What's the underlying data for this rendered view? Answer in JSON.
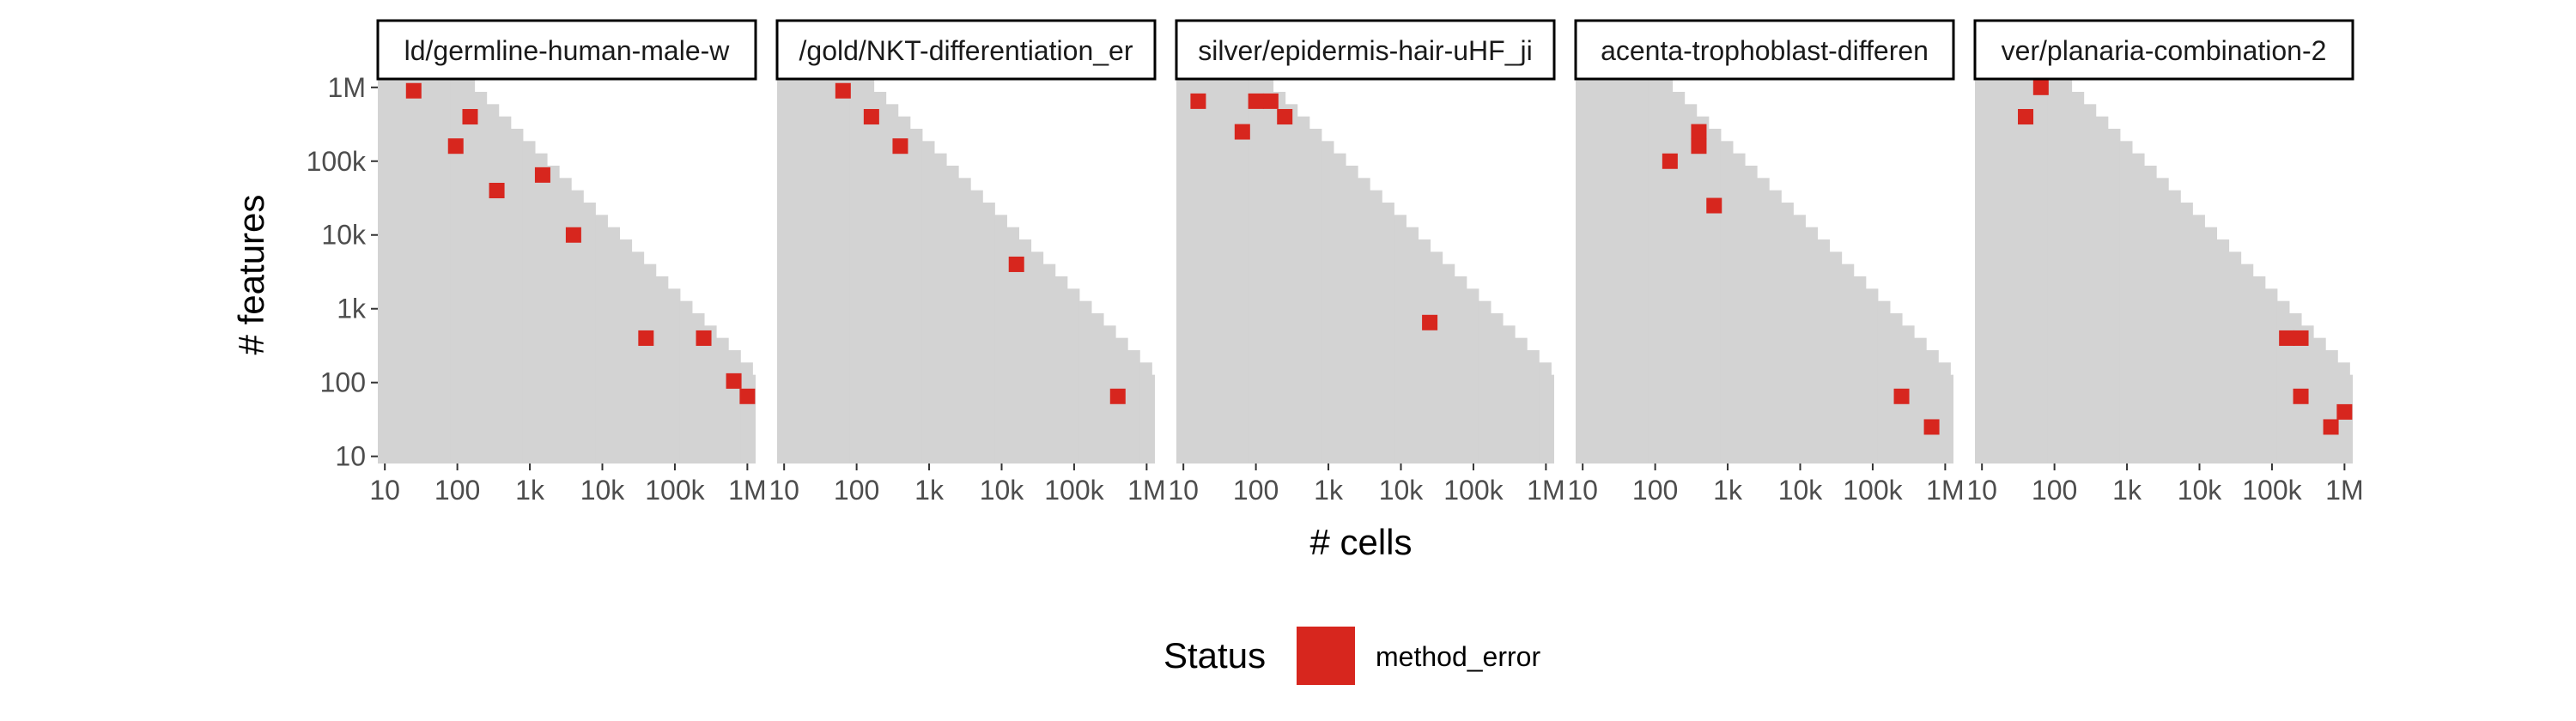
{
  "chart_data": {
    "type": "heatmap",
    "xlabel": "# cells",
    "ylabel": "# features",
    "x_scale": "log10",
    "y_scale": "log10",
    "x_ticks": [
      {
        "value": 10,
        "label": "10"
      },
      {
        "value": 100,
        "label": "100"
      },
      {
        "value": 1000,
        "label": "1k"
      },
      {
        "value": 10000,
        "label": "10k"
      },
      {
        "value": 100000,
        "label": "100k"
      },
      {
        "value": 1000000,
        "label": "1M"
      }
    ],
    "y_ticks": [
      {
        "value": 10,
        "label": "10"
      },
      {
        "value": 100,
        "label": "100"
      },
      {
        "value": 1000,
        "label": "1k"
      },
      {
        "value": 10000,
        "label": "10k"
      },
      {
        "value": 100000,
        "label": "100k"
      },
      {
        "value": 1000000,
        "label": "1M"
      }
    ],
    "xlim": [
      8,
      1300000
    ],
    "ylim": [
      8,
      1300000
    ],
    "feasible_region": {
      "color": "#d3d3d3",
      "description_rule": "cells shaded where cells x features <= limit",
      "limit": 150000000,
      "bin_width_log10": 0.1667
    },
    "legend": {
      "title": "Status",
      "entries": [
        {
          "label": "method_error",
          "color": "#d7261e"
        }
      ]
    },
    "panels": [
      {
        "title": "ld/germline-human-male-w",
        "points": [
          {
            "x": 25,
            "y": 900000,
            "status": "method_error"
          },
          {
            "x": 150,
            "y": 400000,
            "status": "method_error"
          },
          {
            "x": 95,
            "y": 160000,
            "status": "method_error"
          },
          {
            "x": 1500,
            "y": 65000,
            "status": "method_error"
          },
          {
            "x": 350,
            "y": 40000,
            "status": "method_error"
          },
          {
            "x": 4000,
            "y": 10000,
            "status": "method_error"
          },
          {
            "x": 40000,
            "y": 400,
            "status": "method_error"
          },
          {
            "x": 250000,
            "y": 400,
            "status": "method_error"
          },
          {
            "x": 650000,
            "y": 105,
            "status": "method_error"
          },
          {
            "x": 1000000,
            "y": 65,
            "status": "method_error"
          }
        ]
      },
      {
        "title": "/gold/NKT-differentiation_er",
        "points": [
          {
            "x": 65,
            "y": 900000,
            "status": "method_error"
          },
          {
            "x": 160,
            "y": 400000,
            "status": "method_error"
          },
          {
            "x": 400,
            "y": 160000,
            "status": "method_error"
          },
          {
            "x": 16000,
            "y": 4000,
            "status": "method_error"
          },
          {
            "x": 400000,
            "y": 65,
            "status": "method_error"
          }
        ]
      },
      {
        "title": "silver/epidermis-hair-uHF_ji",
        "points": [
          {
            "x": 16,
            "y": 650000,
            "status": "method_error"
          },
          {
            "x": 100,
            "y": 650000,
            "status": "method_error"
          },
          {
            "x": 160,
            "y": 650000,
            "status": "method_error"
          },
          {
            "x": 250,
            "y": 400000,
            "status": "method_error"
          },
          {
            "x": 65,
            "y": 250000,
            "status": "method_error"
          },
          {
            "x": 25000,
            "y": 650,
            "status": "method_error"
          }
        ]
      },
      {
        "title": "acenta-trophoblast-differen",
        "points": [
          {
            "x": 400,
            "y": 250000,
            "status": "method_error"
          },
          {
            "x": 400,
            "y": 160000,
            "status": "method_error"
          },
          {
            "x": 160,
            "y": 100000,
            "status": "method_error"
          },
          {
            "x": 650,
            "y": 25000,
            "status": "method_error"
          },
          {
            "x": 250000,
            "y": 65,
            "status": "method_error"
          },
          {
            "x": 650000,
            "y": 25,
            "status": "method_error"
          }
        ]
      },
      {
        "title": "ver/planaria-combination-2",
        "points": [
          {
            "x": 65,
            "y": 1000000,
            "status": "method_error"
          },
          {
            "x": 40,
            "y": 400000,
            "status": "method_error"
          },
          {
            "x": 160000,
            "y": 400,
            "status": "method_error"
          },
          {
            "x": 250000,
            "y": 400,
            "status": "method_error"
          },
          {
            "x": 250000,
            "y": 65,
            "status": "method_error"
          },
          {
            "x": 650000,
            "y": 25,
            "status": "method_error"
          },
          {
            "x": 1000000,
            "y": 40,
            "status": "method_error"
          }
        ]
      }
    ]
  }
}
